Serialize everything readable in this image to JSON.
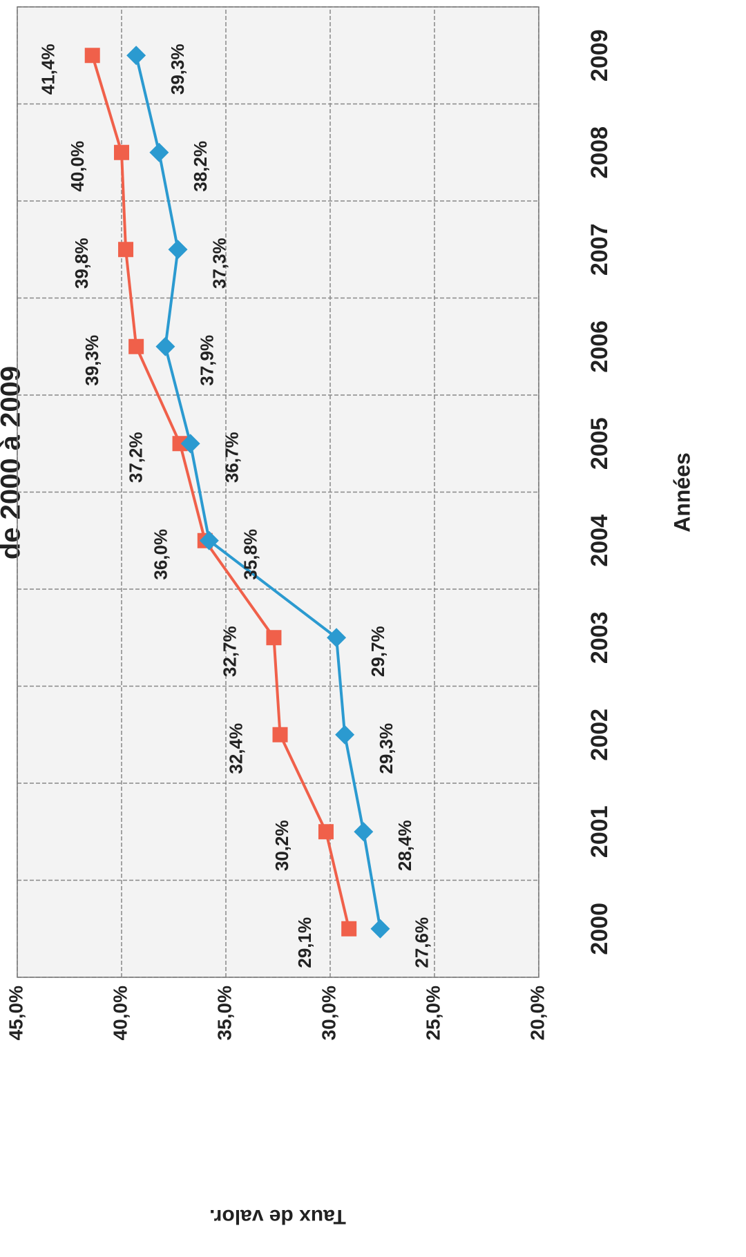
{
  "chart_data": {
    "type": "line",
    "title": "de 2000 à 2009",
    "x_label": "Années",
    "y_label": "Taux de valor.",
    "categories": [
      "2000",
      "2001",
      "2002",
      "2003",
      "2004",
      "2005",
      "2006",
      "2007",
      "2008",
      "2009"
    ],
    "series": [
      {
        "color": "#f0604a",
        "marker": "square",
        "values": [
          29.1,
          30.2,
          32.4,
          32.7,
          36.0,
          37.2,
          39.3,
          39.8,
          40.0,
          41.4
        ],
        "value_labels": [
          "29,1%",
          "30,2%",
          "32,4%",
          "32,7%",
          "36,0%",
          "37,2%",
          "39,3%",
          "39,8%",
          "40,0%",
          "41,4%"
        ]
      },
      {
        "color": "#2b9ad0",
        "marker": "diamond",
        "values": [
          27.6,
          28.4,
          29.3,
          29.7,
          35.8,
          36.7,
          37.9,
          37.3,
          38.2,
          39.3
        ],
        "value_labels": [
          "27,6%",
          "28,4%",
          "29,3%",
          "29,7%",
          "35,8%",
          "36,7%",
          "37,9%",
          "37,3%",
          "38,2%",
          "39,3%"
        ]
      }
    ],
    "ylim": [
      20,
      45
    ],
    "yticks": [
      {
        "value": 20,
        "label": "20,0%"
      },
      {
        "value": 25,
        "label": "25,0%"
      },
      {
        "value": 30,
        "label": "30,0%"
      },
      {
        "value": 35,
        "label": "35,0%"
      },
      {
        "value": 40,
        "label": "40,0%"
      },
      {
        "value": 45,
        "label": "45,0%"
      }
    ],
    "grid": true
  }
}
